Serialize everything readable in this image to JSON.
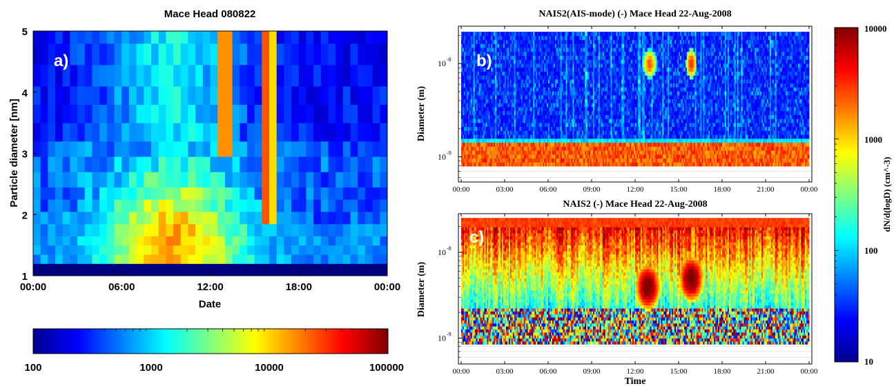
{
  "colormap": [
    "#00008f",
    "#0000ff",
    "#0080ff",
    "#00ffff",
    "#80ff80",
    "#ffff00",
    "#ff8000",
    "#ff0000",
    "#800000"
  ],
  "chart_data": [
    {
      "id": "a",
      "type": "heatmap",
      "title": "Mace Head 080822",
      "panel_label": "a)",
      "xlabel": "Date",
      "ylabel": "Particle diameter [nm]",
      "x_ticks": [
        "00:00",
        "06:00",
        "12:00",
        "18:00",
        "00:00"
      ],
      "x_hours": [
        0,
        6,
        12,
        18,
        24
      ],
      "xlim": [
        0,
        24
      ],
      "y_ticks": [
        "1",
        "2",
        "3",
        "4",
        "5"
      ],
      "ylim": [
        1,
        5
      ],
      "data_ylim": [
        1.2,
        5.0
      ],
      "y_bin_edges": [
        1.2,
        1.35,
        1.5,
        1.65,
        1.85,
        2.05,
        2.25,
        2.45,
        2.7,
        2.95,
        3.2,
        3.5,
        3.8,
        4.1,
        4.45,
        4.8,
        5.0
      ],
      "bin_minutes": 30,
      "scale": "log",
      "colorbar": {
        "orientation": "horizontal",
        "range": [
          100,
          100000
        ],
        "ticks": [
          "100",
          "1000",
          "10000",
          "100000"
        ]
      },
      "events": [
        {
          "start": "12:30",
          "end": "13:30",
          "dmin": 2.9,
          "dmax": 5.0,
          "peak": 50000
        },
        {
          "start": "15:30",
          "end": "16:20",
          "dmin": 1.9,
          "dmax": 5.0,
          "peak": 60000
        }
      ]
    },
    {
      "id": "b",
      "type": "heatmap",
      "title": "NAIS2(AIS-mode) (-) Mace Head 22-Aug-2008",
      "panel_label": "b)",
      "xlabel": "",
      "ylabel": "Diameter (m)",
      "x_ticks": [
        "00:00",
        "03:00",
        "06:00",
        "09:00",
        "12:00",
        "15:00",
        "18:00",
        "21:00",
        "00:00"
      ],
      "y_ticks": [
        "10^-8",
        "10^-9"
      ],
      "y_log": true,
      "scale": "log",
      "events": [
        {
          "start": "12:30",
          "end": "13:30",
          "diameter": "1e-8",
          "peak": 2000
        },
        {
          "start": "15:30",
          "end": "16:15",
          "diameter": "1e-8",
          "peak": 3000
        }
      ],
      "band": {
        "dmin": "8e-10",
        "dmax": "1.4e-9",
        "level": 3000
      }
    },
    {
      "id": "c",
      "type": "heatmap",
      "title": "NAIS2 (-) Mace Head 22-Aug-2008",
      "panel_label": "c)",
      "xlabel": "Time",
      "ylabel": "Diameter (m)",
      "x_ticks": [
        "00:00",
        "03:00",
        "06:00",
        "09:00",
        "12:00",
        "15:00",
        "18:00",
        "21:00",
        "00:00"
      ],
      "y_ticks": [
        "10^-8",
        "10^-9"
      ],
      "y_log": true,
      "scale": "log",
      "events": [
        {
          "start": "12:00",
          "end": "13:45",
          "diameter": "4e-9",
          "peak": 10000
        },
        {
          "start": "15:00",
          "end": "16:45",
          "diameter": "5e-9",
          "peak": 10000
        }
      ]
    }
  ],
  "shared_colorbar": {
    "orientation": "vertical",
    "label": "dN/d(logD) (cm^-3)",
    "range": [
      10,
      10000
    ],
    "ticks": [
      "10000",
      "1000",
      "100",
      "10"
    ]
  }
}
